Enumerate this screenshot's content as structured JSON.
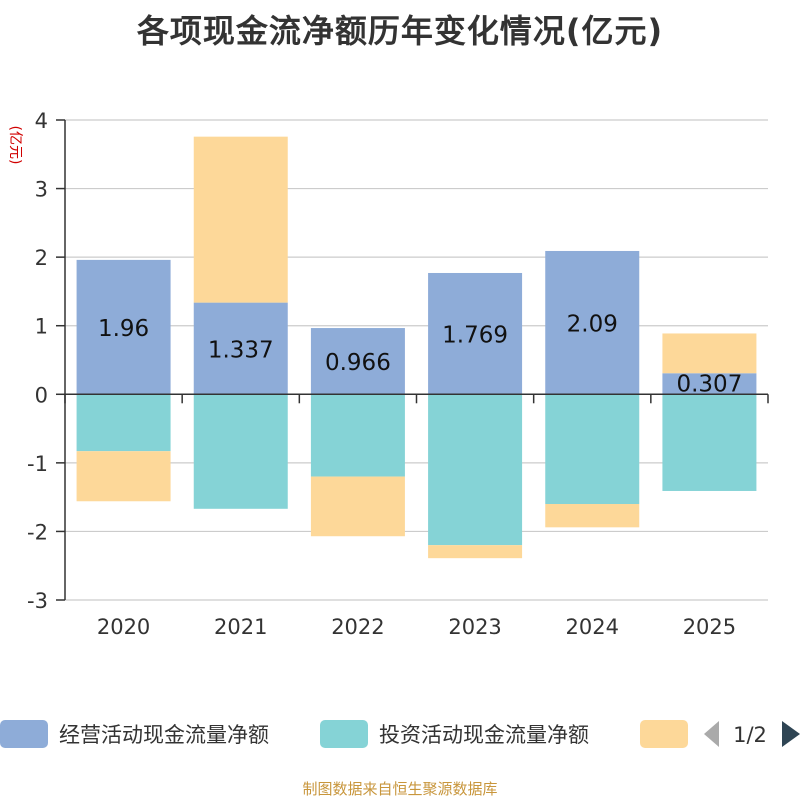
{
  "chart_data": {
    "type": "bar",
    "title": "各项现金流净额历年变化情况(亿元)",
    "ylabel": "(亿元)",
    "ylim": [
      -3,
      4
    ],
    "yticks": [
      4,
      3,
      2,
      1,
      0,
      -1,
      -2,
      -3
    ],
    "categories": [
      "2020",
      "2021",
      "2022",
      "2023",
      "2024",
      "2025"
    ],
    "series": [
      {
        "name": "经营活动现金流量净额",
        "color": "#8eacd8",
        "values": [
          1.96,
          1.337,
          0.966,
          1.769,
          2.09,
          0.307
        ],
        "labels": [
          "1.96",
          "1.337",
          "0.966",
          "1.769",
          "2.09",
          "0.307"
        ]
      },
      {
        "name": "投资活动现金流量净额",
        "color": "#85d3d6",
        "values": [
          -0.83,
          -1.67,
          -1.2,
          -2.2,
          -1.6,
          -1.41
        ]
      },
      {
        "name": "",
        "color": "#fdd899",
        "values": [
          -0.73,
          2.42,
          -0.87,
          -0.19,
          -0.34,
          0.58
        ]
      }
    ],
    "legend": {
      "position": "bottom",
      "page": "1/2"
    }
  },
  "footer": "制图数据来自恒生聚源数据库"
}
